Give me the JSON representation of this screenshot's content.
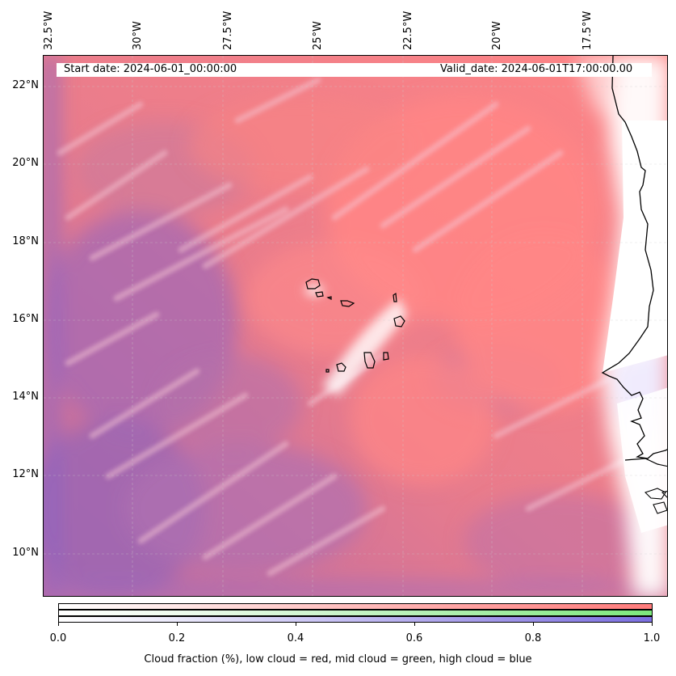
{
  "map": {
    "longitude_labels": [
      "32.5°W",
      "30°W",
      "27.5°W",
      "25°W",
      "22.5°W",
      "20°W",
      "17.5°W"
    ],
    "latitude_labels": [
      "22°N",
      "20°N",
      "18°N",
      "16°N",
      "14°N",
      "12°N",
      "10°N"
    ],
    "start_date_text": "Start date: 2024-06-01_00:00:00",
    "valid_date_text": "Valid_date: 2024-06-01T17:00:00.00"
  },
  "colorbar": {
    "ticks": [
      "0.0",
      "0.2",
      "0.4",
      "0.6",
      "0.8",
      "1.0"
    ],
    "label": "Cloud fraction (%), low cloud = red, mid cloud = green, high cloud = blue",
    "colors": {
      "low": "#ff7b7b",
      "mid": "#7de87d",
      "high": "#7b6fe0"
    }
  },
  "colors": {
    "low_cloud": "#ff8080",
    "high_cloud": "#a070c0",
    "coastline": "#000000",
    "land": "#ffffff"
  }
}
